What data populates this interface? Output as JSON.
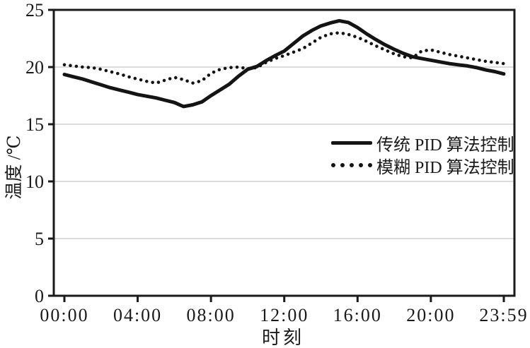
{
  "chart_data": {
    "type": "line",
    "title": "",
    "xlabel": "时刻",
    "ylabel": "温度 /℃",
    "x_domain_hours": [
      0,
      23.983
    ],
    "ylim": [
      0,
      25
    ],
    "y_ticks": [
      {
        "v": 0,
        "label": "0"
      },
      {
        "v": 5,
        "label": "5"
      },
      {
        "v": 10,
        "label": "10"
      },
      {
        "v": 15,
        "label": "15"
      },
      {
        "v": 20,
        "label": "20"
      },
      {
        "v": 25,
        "label": "25"
      }
    ],
    "x_ticks": [
      {
        "t": 0,
        "label": "00:00"
      },
      {
        "t": 4,
        "label": "04:00"
      },
      {
        "t": 8,
        "label": "08:00"
      },
      {
        "t": 12,
        "label": "12:00"
      },
      {
        "t": 16,
        "label": "16:00"
      },
      {
        "t": 20,
        "label": "20:00"
      },
      {
        "t": 23.983,
        "label": "23:59"
      }
    ],
    "gridlines_y": [
      5,
      10,
      15,
      20
    ],
    "grid": "horizontal-only",
    "legend_position": "inside-right-middle",
    "colors": {
      "line": "#141414",
      "frame": "#1a1a1a",
      "grid": "#c8c8c8",
      "background": "#ffffff",
      "text": "#1a1a1a"
    },
    "series": [
      {
        "name": "传统 PID 算法控制",
        "style": "solid",
        "x": [
          0,
          0.5,
          1,
          1.5,
          2,
          2.5,
          3,
          3.5,
          4,
          4.5,
          5,
          5.5,
          6,
          6.5,
          7,
          7.5,
          8,
          8.5,
          9,
          9.5,
          10,
          10.5,
          11,
          11.5,
          12,
          12.5,
          13,
          13.5,
          14,
          14.5,
          15,
          15.5,
          16,
          16.5,
          17,
          17.5,
          18,
          18.5,
          19,
          19.5,
          20,
          20.5,
          21,
          21.5,
          22,
          22.5,
          23,
          23.5,
          23.98
        ],
        "y": [
          19.35,
          19.15,
          18.95,
          18.7,
          18.45,
          18.2,
          18.0,
          17.8,
          17.6,
          17.45,
          17.3,
          17.1,
          16.9,
          16.55,
          16.7,
          16.95,
          17.5,
          18.0,
          18.5,
          19.2,
          19.8,
          20.05,
          20.55,
          21.0,
          21.4,
          22.05,
          22.7,
          23.2,
          23.6,
          23.85,
          24.05,
          23.9,
          23.45,
          22.9,
          22.4,
          21.95,
          21.55,
          21.2,
          20.9,
          20.75,
          20.6,
          20.45,
          20.3,
          20.2,
          20.1,
          19.95,
          19.75,
          19.6,
          19.4
        ]
      },
      {
        "name": "模糊 PID 算法控制",
        "style": "dotted",
        "x": [
          0,
          0.5,
          1,
          1.5,
          2,
          2.5,
          3,
          3.5,
          4,
          4.5,
          5,
          5.5,
          6,
          6.5,
          7,
          7.5,
          8,
          8.5,
          9,
          9.5,
          10,
          10.5,
          11,
          11.5,
          12,
          12.5,
          13,
          13.5,
          14,
          14.5,
          15,
          15.5,
          16,
          16.5,
          17,
          17.5,
          18,
          18.5,
          19,
          19.5,
          20,
          20.5,
          21,
          21.5,
          22,
          22.5,
          23,
          23.5,
          23.98
        ],
        "y": [
          20.2,
          20.1,
          20.0,
          19.95,
          19.8,
          19.6,
          19.4,
          19.15,
          18.95,
          18.75,
          18.6,
          18.85,
          19.1,
          18.9,
          18.6,
          18.8,
          19.45,
          19.8,
          19.95,
          20.0,
          19.85,
          19.95,
          20.4,
          20.75,
          21.0,
          21.3,
          21.6,
          22.1,
          22.6,
          22.9,
          23.0,
          22.85,
          22.6,
          22.25,
          21.85,
          21.5,
          21.15,
          20.9,
          20.8,
          21.4,
          21.5,
          21.3,
          21.1,
          20.95,
          20.8,
          20.65,
          20.5,
          20.4,
          20.3
        ]
      }
    ]
  }
}
